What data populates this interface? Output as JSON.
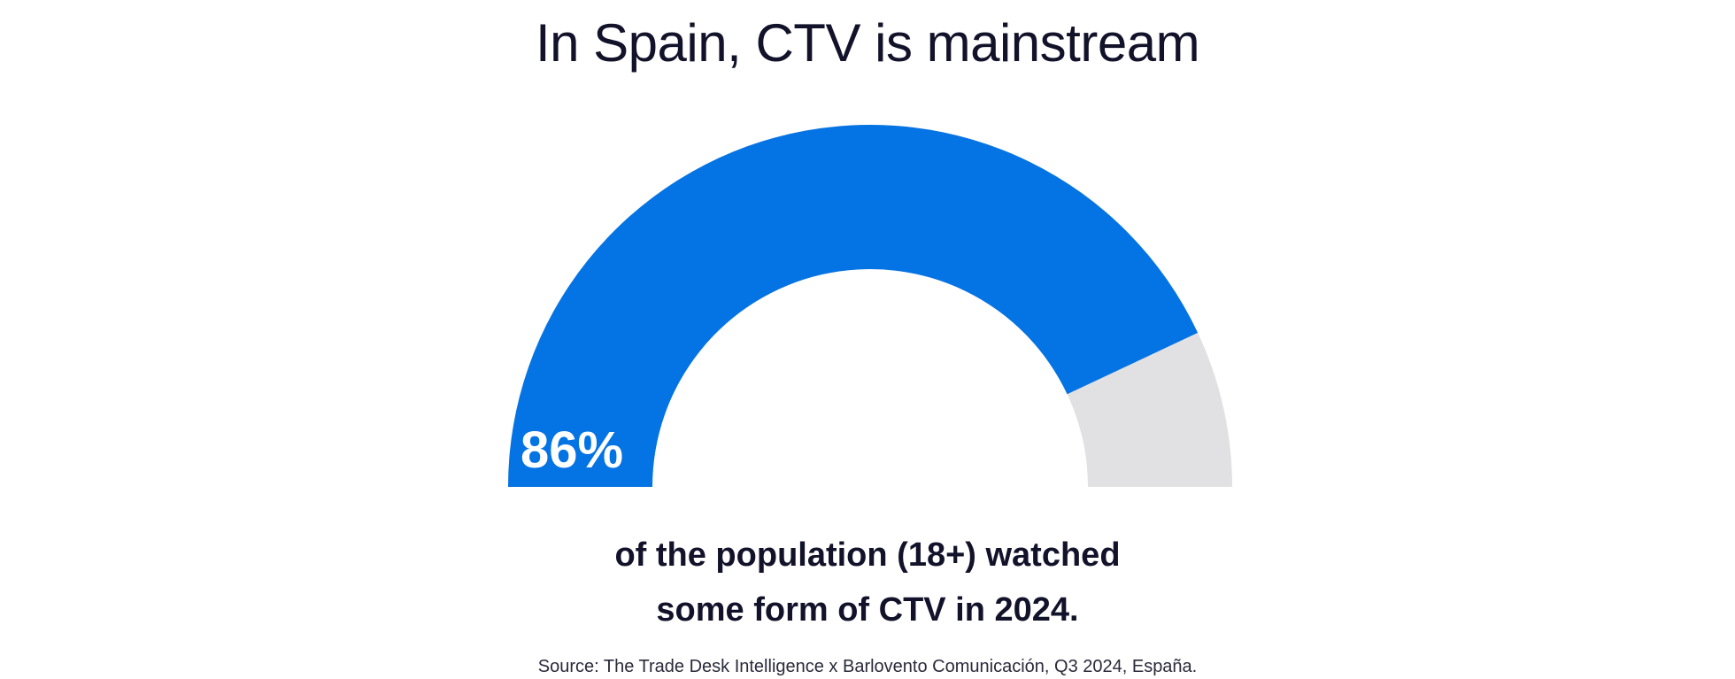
{
  "title": "In Spain, CTV is mainstream",
  "chart_data": {
    "type": "gauge",
    "value": 86,
    "max": 100,
    "value_label": "86%",
    "fill_color": "#0473e3",
    "track_color": "#e1e1e3"
  },
  "caption": {
    "line1": "of the population (18+) watched",
    "line2": "some form of CTV in 2024."
  },
  "source": "Source: The Trade Desk Intelligence x Barlovento Comunicación, Q3 2024, España."
}
